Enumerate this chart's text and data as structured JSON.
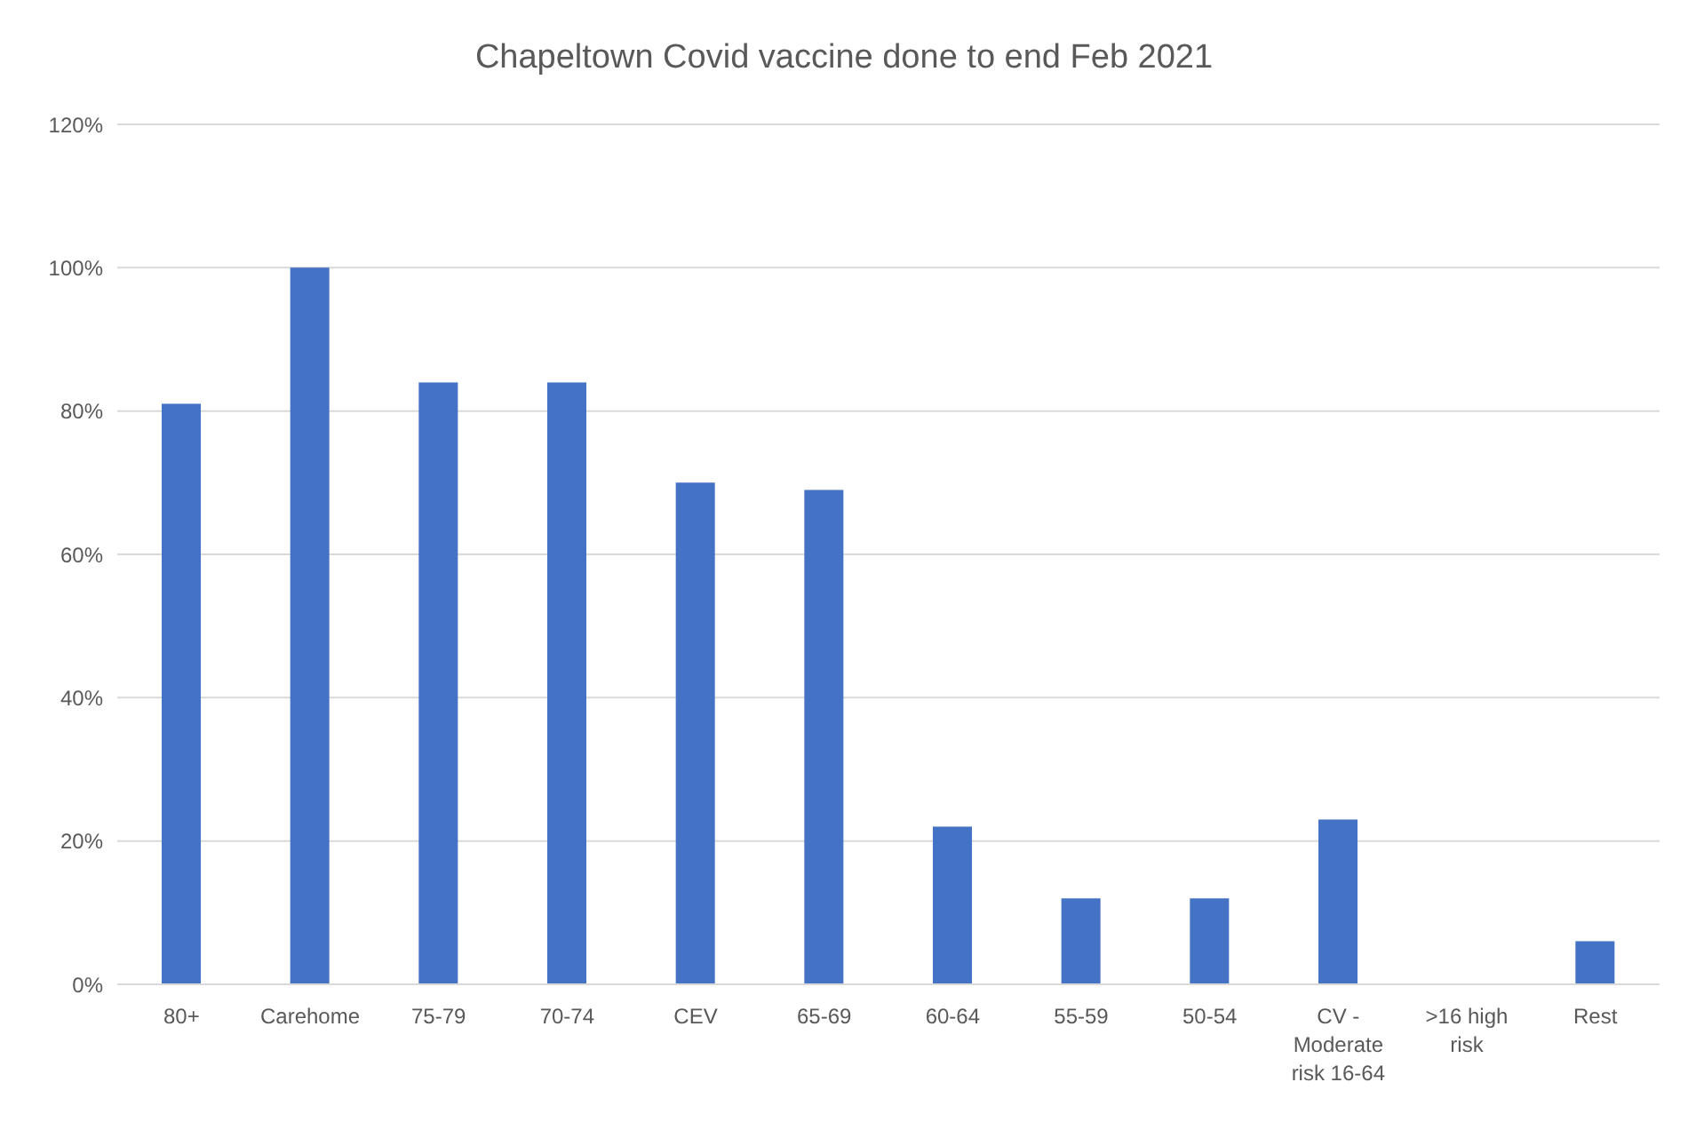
{
  "chart_data": {
    "type": "bar",
    "title": "Chapeltown Covid vaccine done to end Feb 2021",
    "categories": [
      "80+",
      "Carehome",
      "75-79",
      "70-74",
      "CEV",
      "65-69",
      "60-64",
      "55-59",
      "50-54",
      "CV - Moderate risk 16-64",
      ">16 high risk",
      "Rest"
    ],
    "values": [
      81,
      100,
      84,
      84,
      70,
      69,
      22,
      12,
      12,
      23,
      0,
      6
    ],
    "color": "#4472c4",
    "ylim": [
      0,
      120
    ],
    "yticks": [
      {
        "value": 0,
        "label": "0%"
      },
      {
        "value": 20,
        "label": "20%"
      },
      {
        "value": 40,
        "label": "40%"
      },
      {
        "value": 60,
        "label": "60%"
      },
      {
        "value": 80,
        "label": "80%"
      },
      {
        "value": 100,
        "label": "100%"
      },
      {
        "value": 120,
        "label": "120%"
      }
    ],
    "grid": "y"
  }
}
